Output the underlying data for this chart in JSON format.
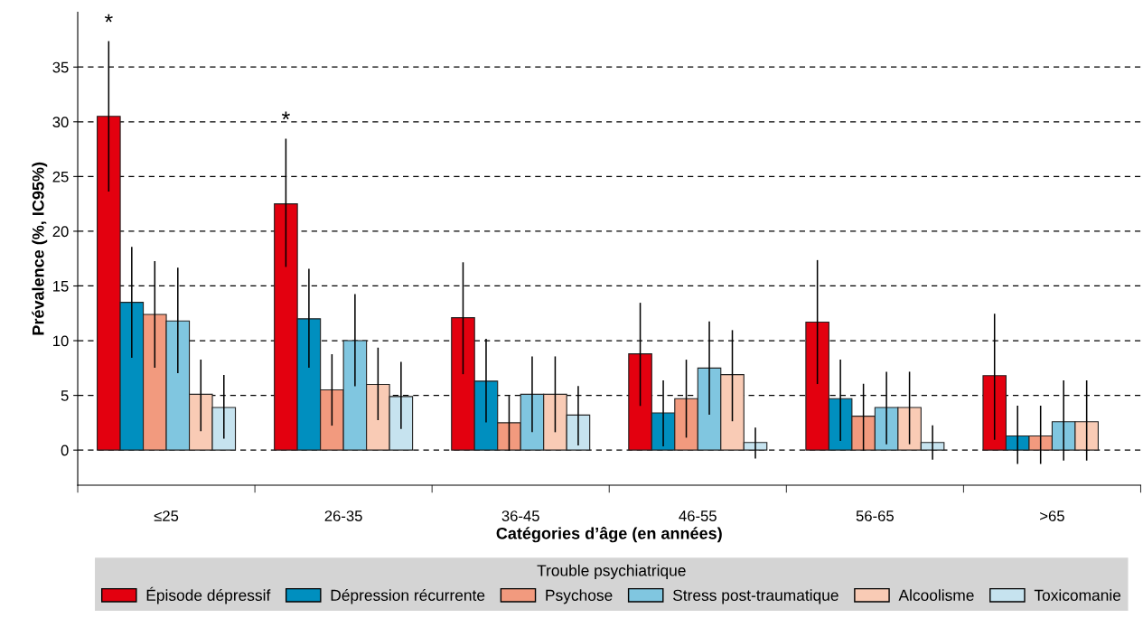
{
  "chart_data": {
    "type": "bar",
    "categories": [
      "≤25",
      "26-35",
      "36-45",
      "46-55",
      "56-65",
      ">65"
    ],
    "xlabel": "Catégories d’âge (en années)",
    "ylabel": "Prévalence (%, IC95%)",
    "legend_title": "Trouble psychiatrique",
    "ylim": [
      -3.2,
      40
    ],
    "yticks": [
      0,
      5,
      10,
      15,
      20,
      25,
      30,
      35
    ],
    "grid": "y",
    "legend": "bottom",
    "series": [
      {
        "name": "Épisode dépressif",
        "color": "#e3000f",
        "values": [
          30.5,
          22.5,
          12.1,
          8.8,
          11.7,
          6.8
        ],
        "errors": [
          [
            23.7,
            37.3
          ],
          [
            16.8,
            28.4
          ],
          [
            7.0,
            17.1
          ],
          [
            4.1,
            13.4
          ],
          [
            6.1,
            17.3
          ],
          [
            1.0,
            12.4
          ]
        ]
      },
      {
        "name": "Dépression récurrente",
        "color": "#008fbf",
        "values": [
          13.5,
          12.0,
          6.3,
          3.4,
          4.7,
          1.3
        ],
        "errors": [
          [
            8.5,
            18.5
          ],
          [
            7.6,
            16.5
          ],
          [
            2.6,
            10.1
          ],
          [
            0.4,
            6.3
          ],
          [
            0.9,
            8.2
          ],
          [
            -1.2,
            4.0
          ]
        ]
      },
      {
        "name": "Psychose",
        "color": "#f29a7e",
        "values": [
          12.4,
          5.5,
          2.5,
          4.7,
          3.1,
          1.3
        ],
        "errors": [
          [
            7.6,
            17.2
          ],
          [
            2.3,
            8.7
          ],
          [
            0.0,
            4.9
          ],
          [
            1.2,
            8.2
          ],
          [
            0.0,
            6.0
          ],
          [
            -1.2,
            4.0
          ]
        ]
      },
      {
        "name": "Stress post-traumatique",
        "color": "#80c6e0",
        "values": [
          11.8,
          10.0,
          5.1,
          7.5,
          3.9,
          2.6
        ],
        "errors": [
          [
            7.1,
            16.6
          ],
          [
            5.9,
            14.2
          ],
          [
            1.7,
            8.5
          ],
          [
            3.3,
            11.7
          ],
          [
            0.6,
            7.1
          ],
          [
            -0.9,
            6.3
          ]
        ]
      },
      {
        "name": "Alcoolisme",
        "color": "#f9cbb5",
        "values": [
          5.1,
          6.0,
          5.1,
          6.9,
          3.9,
          2.6
        ],
        "errors": [
          [
            1.8,
            8.2
          ],
          [
            2.8,
            9.3
          ],
          [
            1.7,
            8.5
          ],
          [
            2.7,
            10.9
          ],
          [
            0.6,
            7.1
          ],
          [
            -0.9,
            6.3
          ]
        ]
      },
      {
        "name": "Toxicomanie",
        "color": "#c6e3ef",
        "values": [
          3.9,
          4.9,
          3.2,
          0.7,
          0.7,
          null
        ],
        "errors": [
          [
            1.1,
            6.8
          ],
          [
            2.0,
            8.0
          ],
          [
            0.5,
            5.8
          ],
          [
            -0.7,
            2.0
          ],
          [
            -0.8,
            2.2
          ],
          null
        ]
      }
    ],
    "annotations": [
      "*",
      "*"
    ]
  }
}
